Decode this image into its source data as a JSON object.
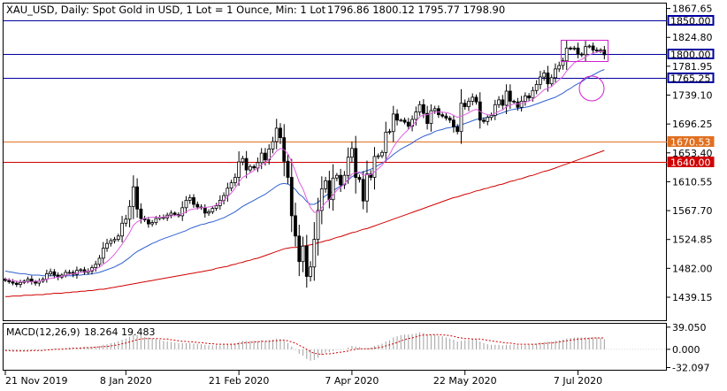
{
  "header": {
    "symbol_line": "XAU_USD, Daily:  Spot Gold in USD, 1 Lot = 1 Ounce, Min: 1 Lot",
    "ohlc": "1796.86 1800.12 1795.77 1798.90"
  },
  "macd_label": {
    "name": "MACD(12,26,9)",
    "values": "18.264 19.483"
  },
  "colors": {
    "background": "#ffffff",
    "frame": "#000000",
    "candle_up": "#000000",
    "candle_down": "#000000",
    "ma_fast": "#e060e0",
    "ma_mid": "#3060d0",
    "ma_slow": "#d00000",
    "hline_blue": "#0000a0",
    "hline_orange": "#e07020",
    "hline_red": "#d00000",
    "annotation": "#d020d0",
    "macd_hist": "#a0a0a0",
    "macd_signal": "#d00000"
  },
  "chart_data": [
    {
      "type": "candlestick",
      "title": "XAU_USD, Daily",
      "ylim": [
        1405,
        1875
      ],
      "price_ticks": [
        "1867.65",
        "1824.80",
        "1781.95",
        "1739.10",
        "1696.25",
        "1653.40",
        "1610.55",
        "1567.70",
        "1524.85",
        "1482.00",
        "1439.15"
      ],
      "x_labels": [
        "21 Nov 2019",
        "8 Jan 2020",
        "21 Feb 2020",
        "7 Apr 2020",
        "22 May 2020",
        "7 Jul 2020"
      ],
      "x_label_index": [
        0,
        32,
        62,
        92,
        122,
        152
      ],
      "hlines": [
        {
          "label": "1850.00",
          "price": 1850.0,
          "color": "#0000a0",
          "style": "box"
        },
        {
          "label": "1800.00",
          "price": 1800.0,
          "color": "#0000a0",
          "style": "box"
        },
        {
          "label": "1765.25",
          "price": 1765.25,
          "color": "#0000a0",
          "style": "box"
        },
        {
          "label": "1670.53",
          "price": 1670.53,
          "color": "#e07020",
          "style": "fill"
        },
        {
          "label": "1640.00",
          "price": 1640.0,
          "color": "#d00000",
          "style": "fill"
        }
      ],
      "close_series": [
        1464,
        1462,
        1460,
        1458,
        1461,
        1463,
        1466,
        1462,
        1460,
        1463,
        1466,
        1474,
        1477,
        1472,
        1469,
        1472,
        1476,
        1476,
        1473,
        1479,
        1480,
        1476,
        1478,
        1483,
        1488,
        1497,
        1512,
        1519,
        1523,
        1525,
        1530,
        1549,
        1555,
        1574,
        1603,
        1570,
        1556,
        1554,
        1548,
        1550,
        1556,
        1558,
        1557,
        1561,
        1564,
        1562,
        1560,
        1572,
        1583,
        1587,
        1577,
        1573,
        1572,
        1564,
        1566,
        1571,
        1575,
        1583,
        1590,
        1601,
        1609,
        1617,
        1640,
        1645,
        1628,
        1633,
        1631,
        1639,
        1653,
        1643,
        1659,
        1670,
        1690,
        1676,
        1641,
        1617,
        1560,
        1530,
        1492,
        1515,
        1470,
        1484,
        1525,
        1568,
        1600,
        1612,
        1584,
        1616,
        1620,
        1606,
        1620,
        1647,
        1660,
        1617,
        1614,
        1582,
        1622,
        1617,
        1648,
        1649,
        1654,
        1684,
        1685,
        1711,
        1702,
        1702,
        1699,
        1693,
        1703,
        1714,
        1725,
        1712,
        1697,
        1716,
        1719,
        1710,
        1708,
        1705,
        1702,
        1692,
        1685,
        1727,
        1722,
        1730,
        1736,
        1729,
        1702,
        1700,
        1706,
        1709,
        1725,
        1732,
        1724,
        1745,
        1730,
        1729,
        1721,
        1730,
        1738,
        1735,
        1746,
        1755,
        1766,
        1772,
        1756,
        1765,
        1778,
        1783,
        1790,
        1809,
        1808,
        1809,
        1800,
        1799,
        1811,
        1812,
        1806,
        1805,
        1806,
        1799
      ],
      "ma_fast": [
        1466,
        1465,
        1464,
        1463,
        1462,
        1462,
        1462,
        1462,
        1463,
        1463,
        1464,
        1466,
        1467,
        1468,
        1469,
        1470,
        1472,
        1473,
        1474,
        1475,
        1476,
        1477,
        1478,
        1479,
        1481,
        1484,
        1488,
        1492,
        1497,
        1503,
        1510,
        1518,
        1526,
        1535,
        1546,
        1551,
        1554,
        1556,
        1557,
        1558,
        1558,
        1558,
        1558,
        1559,
        1560,
        1560,
        1561,
        1563,
        1566,
        1569,
        1570,
        1571,
        1572,
        1572,
        1573,
        1574,
        1576,
        1579,
        1583,
        1588,
        1594,
        1601,
        1610,
        1617,
        1620,
        1624,
        1627,
        1631,
        1636,
        1639,
        1644,
        1649,
        1656,
        1660,
        1658,
        1652,
        1640,
        1626,
        1610,
        1600,
        1585,
        1572,
        1565,
        1566,
        1572,
        1580,
        1584,
        1591,
        1598,
        1602,
        1607,
        1614,
        1622,
        1624,
        1625,
        1620,
        1621,
        1621,
        1625,
        1630,
        1635,
        1643,
        1651,
        1662,
        1670,
        1677,
        1683,
        1688,
        1694,
        1700,
        1707,
        1710,
        1710,
        1712,
        1714,
        1714,
        1714,
        1713,
        1712,
        1709,
        1706,
        1708,
        1710,
        1713,
        1716,
        1718,
        1715,
        1712,
        1710,
        1710,
        1712,
        1715,
        1717,
        1722,
        1724,
        1726,
        1726,
        1727,
        1729,
        1730,
        1733,
        1737,
        1742,
        1747,
        1749,
        1752,
        1757,
        1762,
        1767,
        1775,
        1781,
        1787,
        1790,
        1792,
        1796,
        1799,
        1801,
        1803,
        1804,
        1804
      ],
      "ma_mid": [
        1478,
        1477,
        1476,
        1475,
        1474,
        1474,
        1473,
        1472,
        1472,
        1472,
        1471,
        1471,
        1471,
        1471,
        1471,
        1471,
        1471,
        1471,
        1471,
        1472,
        1472,
        1473,
        1473,
        1474,
        1475,
        1476,
        1478,
        1480,
        1482,
        1484,
        1487,
        1490,
        1494,
        1498,
        1503,
        1507,
        1510,
        1513,
        1516,
        1519,
        1521,
        1524,
        1526,
        1528,
        1530,
        1532,
        1534,
        1536,
        1538,
        1541,
        1543,
        1545,
        1547,
        1548,
        1550,
        1551,
        1553,
        1555,
        1557,
        1560,
        1563,
        1566,
        1570,
        1574,
        1577,
        1580,
        1583,
        1586,
        1589,
        1592,
        1596,
        1600,
        1604,
        1607,
        1608,
        1607,
        1604,
        1599,
        1592,
        1588,
        1581,
        1577,
        1577,
        1580,
        1585,
        1590,
        1593,
        1597,
        1601,
        1604,
        1608,
        1613,
        1618,
        1621,
        1624,
        1625,
        1627,
        1629,
        1632,
        1635,
        1638,
        1642,
        1646,
        1651,
        1655,
        1659,
        1662,
        1665,
        1668,
        1672,
        1675,
        1678,
        1680,
        1682,
        1685,
        1687,
        1688,
        1690,
        1691,
        1692,
        1693,
        1695,
        1697,
        1699,
        1701,
        1703,
        1704,
        1705,
        1706,
        1707,
        1709,
        1711,
        1713,
        1715,
        1717,
        1718,
        1719,
        1720,
        1721,
        1722,
        1724,
        1726,
        1728,
        1730,
        1732,
        1734,
        1736,
        1739,
        1742,
        1746,
        1749,
        1753,
        1756,
        1759,
        1763,
        1766,
        1769,
        1772,
        1775,
        1777
      ],
      "ma_slow": [
        1440,
        1440,
        1441,
        1441,
        1441,
        1442,
        1442,
        1442,
        1443,
        1443,
        1443,
        1444,
        1444,
        1445,
        1445,
        1445,
        1446,
        1446,
        1447,
        1447,
        1448,
        1448,
        1449,
        1449,
        1450,
        1451,
        1451,
        1452,
        1453,
        1454,
        1455,
        1456,
        1457,
        1458,
        1459,
        1460,
        1461,
        1462,
        1463,
        1464,
        1465,
        1466,
        1467,
        1468,
        1469,
        1470,
        1471,
        1472,
        1473,
        1474,
        1475,
        1476,
        1477,
        1478,
        1479,
        1480,
        1482,
        1483,
        1484,
        1485,
        1487,
        1488,
        1490,
        1491,
        1493,
        1494,
        1496,
        1497,
        1499,
        1501,
        1503,
        1505,
        1507,
        1509,
        1511,
        1512,
        1513,
        1513,
        1514,
        1515,
        1516,
        1517,
        1518,
        1520,
        1521,
        1523,
        1524,
        1526,
        1528,
        1529,
        1531,
        1533,
        1535,
        1536,
        1538,
        1540,
        1541,
        1543,
        1545,
        1547,
        1549,
        1551,
        1553,
        1555,
        1557,
        1559,
        1561,
        1563,
        1565,
        1567,
        1569,
        1571,
        1573,
        1575,
        1577,
        1579,
        1581,
        1583,
        1585,
        1587,
        1588,
        1590,
        1592,
        1593,
        1595,
        1597,
        1598,
        1600,
        1601,
        1603,
        1604,
        1606,
        1607,
        1609,
        1611,
        1612,
        1614,
        1615,
        1617,
        1619,
        1620,
        1622,
        1624,
        1626,
        1627,
        1629,
        1631,
        1633,
        1635,
        1637,
        1639,
        1641,
        1643,
        1645,
        1647,
        1649,
        1651,
        1653,
        1655,
        1657
      ]
    },
    {
      "type": "bar",
      "title": "MACD(12,26,9)",
      "ylim": [
        -36,
        45
      ],
      "ticks": [
        "39.050",
        "0.000",
        "-32.097"
      ],
      "macd": [
        -3,
        -3,
        -3,
        -3,
        -3,
        -2,
        -2,
        -2,
        -2,
        -1,
        -1,
        0,
        1,
        1,
        1,
        2,
        2,
        3,
        3,
        3,
        4,
        4,
        4,
        5,
        5,
        6,
        8,
        9,
        11,
        12,
        14,
        17,
        19,
        22,
        26,
        25,
        24,
        22,
        21,
        19,
        18,
        17,
        15,
        14,
        13,
        12,
        11,
        11,
        11,
        11,
        10,
        10,
        9,
        8,
        7,
        7,
        7,
        7,
        8,
        9,
        10,
        11,
        13,
        15,
        15,
        15,
        15,
        15,
        16,
        15,
        16,
        17,
        19,
        18,
        15,
        11,
        5,
        -1,
        -8,
        -11,
        -17,
        -20,
        -19,
        -15,
        -10,
        -6,
        -5,
        -3,
        -1,
        -1,
        0,
        3,
        6,
        5,
        4,
        1,
        2,
        3,
        6,
        8,
        10,
        14,
        16,
        21,
        23,
        25,
        26,
        26,
        27,
        28,
        30,
        29,
        27,
        26,
        26,
        24,
        23,
        21,
        19,
        17,
        14,
        15,
        16,
        17,
        18,
        17,
        14,
        11,
        9,
        8,
        8,
        8,
        7,
        8,
        8,
        8,
        7,
        7,
        8,
        8,
        9,
        10,
        12,
        13,
        13,
        14,
        15,
        16,
        17,
        19,
        20,
        21,
        21,
        21,
        21,
        21,
        21,
        21,
        20,
        18
      ],
      "signal": [
        -2,
        -2,
        -3,
        -3,
        -3,
        -3,
        -3,
        -2,
        -2,
        -2,
        -2,
        -1,
        -1,
        0,
        0,
        0,
        1,
        1,
        2,
        2,
        2,
        3,
        3,
        3,
        4,
        4,
        5,
        5,
        6,
        7,
        8,
        10,
        11,
        13,
        15,
        17,
        18,
        19,
        19,
        19,
        19,
        19,
        18,
        18,
        17,
        16,
        15,
        14,
        14,
        13,
        13,
        12,
        12,
        11,
        10,
        10,
        9,
        9,
        9,
        9,
        9,
        9,
        10,
        11,
        12,
        12,
        13,
        13,
        14,
        14,
        14,
        15,
        15,
        16,
        16,
        15,
        13,
        11,
        7,
        4,
        0,
        -4,
        -7,
        -8,
        -9,
        -8,
        -8,
        -7,
        -6,
        -5,
        -4,
        -3,
        -1,
        0,
        1,
        1,
        1,
        1,
        2,
        3,
        4,
        6,
        8,
        10,
        12,
        15,
        17,
        19,
        20,
        22,
        24,
        25,
        25,
        26,
        26,
        26,
        25,
        25,
        24,
        23,
        21,
        20,
        19,
        19,
        18,
        18,
        18,
        17,
        16,
        15,
        14,
        13,
        12,
        11,
        11,
        10,
        9,
        9,
        9,
        9,
        9,
        9,
        10,
        10,
        11,
        11,
        12,
        13,
        14,
        15,
        16,
        17,
        18,
        18,
        19,
        19,
        20,
        20,
        20,
        20
      ]
    }
  ]
}
